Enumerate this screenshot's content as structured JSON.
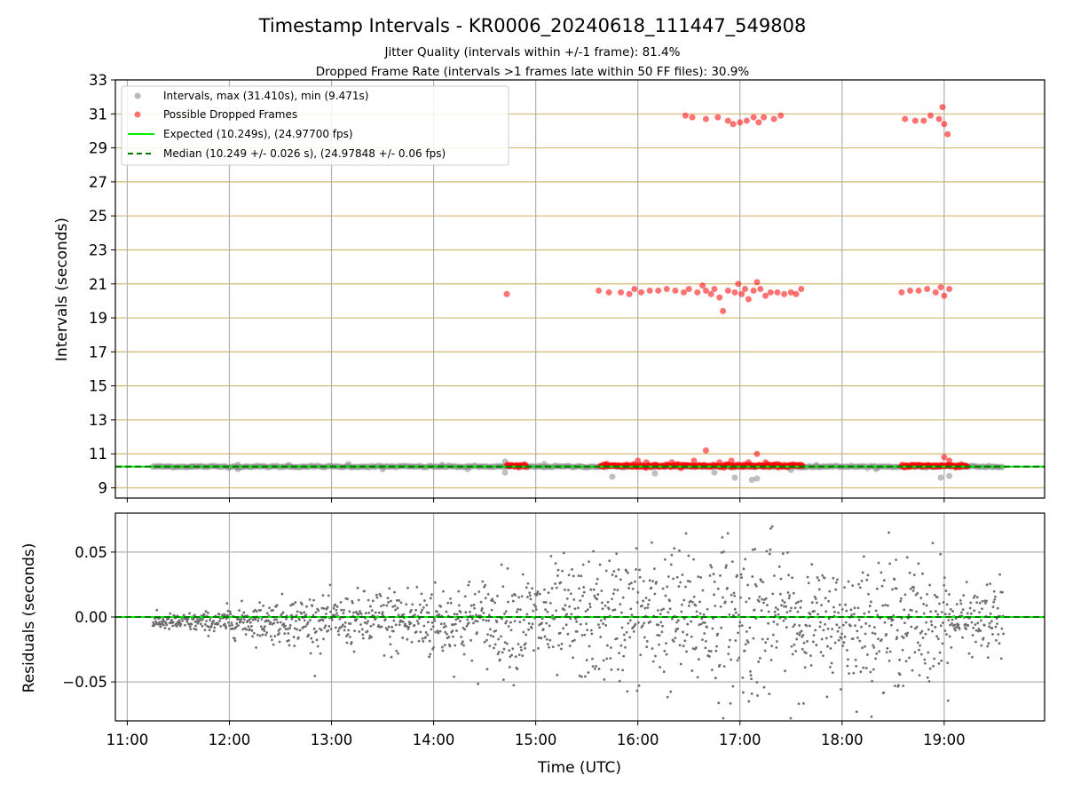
{
  "figure": {
    "title": "Timestamp Intervals - KR0006_20240618_111447_549808",
    "subtitle_1": "Jitter Quality (intervals within +/-1 frame): 81.4%",
    "subtitle_2": "Dropped Frame Rate (intervals >1 frames late within 50 FF files): 30.9%"
  },
  "colors": {
    "interval_points": "#808080",
    "dropped_points": "#ff0000",
    "expected_line": "#00ee00",
    "median_line": "#007700",
    "hgrid_top": "#d4b872",
    "grid": "#b0b0b0"
  },
  "chart_data": [
    {
      "type": "scatter",
      "ylabel": "Intervals (seconds)",
      "ylim": [
        8.4,
        33
      ],
      "yticks": [
        "9",
        "11",
        "13",
        "15",
        "17",
        "19",
        "21",
        "23",
        "25",
        "27",
        "29",
        "31",
        "33"
      ],
      "xlim": [
        "10:53",
        "19:59"
      ],
      "xticks": [
        "11:00",
        "12:00",
        "13:00",
        "14:00",
        "15:00",
        "16:00",
        "17:00",
        "18:00",
        "19:00"
      ],
      "grid": "on",
      "legend_position": "top-left",
      "legend": [
        "Intervals, max (31.410s), min (9.471s)",
        "Possible Dropped Frames",
        "Expected (10.249s), (24.97700 fps)",
        "Median (10.249 +/- 0.026 s), (24.97848 +/- 0.06 fps)"
      ],
      "series": [
        {
          "name": "Intervals, max (31.410s), min (9.471s)",
          "baseline_value": 10.249,
          "time_range": [
            "11:15",
            "19:35"
          ],
          "max": 31.41,
          "min": 9.471,
          "outliers": [
            {
              "x": "11:38",
              "y": 10.25
            },
            {
              "x": "12:05",
              "y": 10.36
            },
            {
              "x": "12:05",
              "y": 10.1
            },
            {
              "x": "12:35",
              "y": 10.35
            },
            {
              "x": "13:10",
              "y": 10.4
            },
            {
              "x": "13:30",
              "y": 10.1
            },
            {
              "x": "14:05",
              "y": 10.35
            },
            {
              "x": "14:20",
              "y": 10.1
            },
            {
              "x": "14:42",
              "y": 10.55
            },
            {
              "x": "14:42",
              "y": 9.9
            },
            {
              "x": "15:05",
              "y": 10.4
            },
            {
              "x": "15:45",
              "y": 9.65
            },
            {
              "x": "16:10",
              "y": 9.85
            },
            {
              "x": "16:45",
              "y": 9.9
            },
            {
              "x": "16:57",
              "y": 9.6
            },
            {
              "x": "17:07",
              "y": 9.47
            },
            {
              "x": "17:10",
              "y": 9.55
            },
            {
              "x": "17:30",
              "y": 10.05
            },
            {
              "x": "17:45",
              "y": 10.35
            },
            {
              "x": "18:20",
              "y": 10.1
            },
            {
              "x": "18:58",
              "y": 9.6
            },
            {
              "x": "19:03",
              "y": 9.7
            },
            {
              "x": "19:10",
              "y": 10.4
            }
          ]
        },
        {
          "name": "Possible Dropped Frames",
          "baseline_band": {
            "y": 10.3,
            "ranges": [
              [
                "14:43",
                "14:55"
              ],
              [
                "15:38",
                "17:37"
              ],
              [
                "18:35",
                "19:14"
              ]
            ]
          },
          "points": [
            {
              "x": "14:43",
              "y": 20.4
            },
            {
              "x": "15:37",
              "y": 20.6
            },
            {
              "x": "15:43",
              "y": 20.5
            },
            {
              "x": "15:50",
              "y": 20.5
            },
            {
              "x": "15:55",
              "y": 20.4
            },
            {
              "x": "15:58",
              "y": 20.7
            },
            {
              "x": "16:02",
              "y": 20.5
            },
            {
              "x": "16:07",
              "y": 20.6
            },
            {
              "x": "16:12",
              "y": 20.6
            },
            {
              "x": "16:17",
              "y": 20.7
            },
            {
              "x": "16:22",
              "y": 20.6
            },
            {
              "x": "16:27",
              "y": 20.5
            },
            {
              "x": "16:30",
              "y": 20.7
            },
            {
              "x": "16:35",
              "y": 20.5
            },
            {
              "x": "16:38",
              "y": 20.9
            },
            {
              "x": "16:40",
              "y": 20.6
            },
            {
              "x": "16:43",
              "y": 20.4
            },
            {
              "x": "16:45",
              "y": 20.7
            },
            {
              "x": "16:48",
              "y": 20.2
            },
            {
              "x": "16:50",
              "y": 19.4
            },
            {
              "x": "16:53",
              "y": 20.6
            },
            {
              "x": "16:57",
              "y": 20.5
            },
            {
              "x": "16:59",
              "y": 21.0
            },
            {
              "x": "17:01",
              "y": 20.4
            },
            {
              "x": "17:03",
              "y": 20.7
            },
            {
              "x": "17:05",
              "y": 20.1
            },
            {
              "x": "17:08",
              "y": 20.6
            },
            {
              "x": "17:10",
              "y": 21.1
            },
            {
              "x": "17:12",
              "y": 20.7
            },
            {
              "x": "17:15",
              "y": 20.3
            },
            {
              "x": "17:18",
              "y": 20.5
            },
            {
              "x": "17:22",
              "y": 20.5
            },
            {
              "x": "17:26",
              "y": 20.4
            },
            {
              "x": "17:30",
              "y": 20.5
            },
            {
              "x": "17:33",
              "y": 20.4
            },
            {
              "x": "17:36",
              "y": 20.7
            },
            {
              "x": "18:35",
              "y": 20.5
            },
            {
              "x": "18:40",
              "y": 20.6
            },
            {
              "x": "18:45",
              "y": 20.6
            },
            {
              "x": "18:50",
              "y": 20.7
            },
            {
              "x": "18:55",
              "y": 20.5
            },
            {
              "x": "18:58",
              "y": 20.8
            },
            {
              "x": "19:00",
              "y": 20.3
            },
            {
              "x": "19:03",
              "y": 20.7
            },
            {
              "x": "16:28",
              "y": 30.9
            },
            {
              "x": "16:32",
              "y": 30.8
            },
            {
              "x": "16:40",
              "y": 30.7
            },
            {
              "x": "16:47",
              "y": 30.8
            },
            {
              "x": "16:53",
              "y": 30.6
            },
            {
              "x": "16:56",
              "y": 30.4
            },
            {
              "x": "17:00",
              "y": 30.5
            },
            {
              "x": "17:04",
              "y": 30.6
            },
            {
              "x": "17:08",
              "y": 30.8
            },
            {
              "x": "17:11",
              "y": 30.5
            },
            {
              "x": "17:14",
              "y": 30.8
            },
            {
              "x": "17:20",
              "y": 30.7
            },
            {
              "x": "17:24",
              "y": 30.9
            },
            {
              "x": "18:37",
              "y": 30.7
            },
            {
              "x": "18:43",
              "y": 30.6
            },
            {
              "x": "18:48",
              "y": 30.6
            },
            {
              "x": "18:52",
              "y": 30.9
            },
            {
              "x": "18:57",
              "y": 30.7
            },
            {
              "x": "18:59",
              "y": 31.4
            },
            {
              "x": "19:00",
              "y": 30.4
            },
            {
              "x": "19:02",
              "y": 29.8
            },
            {
              "x": "14:50",
              "y": 10.2
            },
            {
              "x": "16:00",
              "y": 10.6
            },
            {
              "x": "16:05",
              "y": 10.5
            },
            {
              "x": "16:20",
              "y": 10.5
            },
            {
              "x": "16:33",
              "y": 10.6
            },
            {
              "x": "16:40",
              "y": 11.2
            },
            {
              "x": "16:48",
              "y": 10.5
            },
            {
              "x": "16:55",
              "y": 10.6
            },
            {
              "x": "17:05",
              "y": 10.5
            },
            {
              "x": "17:10",
              "y": 11.0
            },
            {
              "x": "17:15",
              "y": 10.5
            },
            {
              "x": "19:00",
              "y": 10.8
            },
            {
              "x": "19:03",
              "y": 10.6
            }
          ]
        },
        {
          "name": "Expected (10.249s), (24.97700 fps)",
          "y": 10.249
        },
        {
          "name": "Median (10.249 +/- 0.026 s), (24.97848 +/- 0.06 fps)",
          "y": 10.249
        }
      ]
    },
    {
      "type": "scatter",
      "xlabel": "Time (UTC)",
      "ylabel": "Residuals (seconds)",
      "ylim": [
        -0.08,
        0.08
      ],
      "yticks": [
        "−0.05",
        "0.00",
        "0.05"
      ],
      "xlim": [
        "10:53",
        "19:59"
      ],
      "xticks": [
        "11:00",
        "12:00",
        "13:00",
        "14:00",
        "15:00",
        "16:00",
        "17:00",
        "18:00",
        "19:00"
      ],
      "grid": "on",
      "series": [
        {
          "zero_line": 0.0,
          "segments": [
            {
              "from": "11:15",
              "to": "11:58",
              "center": -0.004,
              "spread_start": 0.005,
              "spread_end": 0.008
            },
            {
              "from": "11:58",
              "to": "12:55",
              "center": -0.003,
              "spread_start": 0.01,
              "spread_end": 0.02
            },
            {
              "from": "12:55",
              "to": "14:00",
              "center": -0.003,
              "spread_start": 0.015,
              "spread_end": 0.03
            },
            {
              "from": "14:00",
              "to": "15:40",
              "center": -0.003,
              "spread_start": 0.025,
              "spread_end": 0.045
            },
            {
              "from": "15:40",
              "to": "17:35",
              "center": 0.0,
              "spread_start": 0.045,
              "spread_end": 0.06
            },
            {
              "from": "17:35",
              "to": "18:32",
              "center": -0.005,
              "spread_start": 0.035,
              "spread_end": 0.05
            },
            {
              "from": "18:32",
              "to": "19:03",
              "center": -0.005,
              "spread_start": 0.04,
              "spread_end": 0.05
            },
            {
              "from": "19:03",
              "to": "19:35",
              "center": -0.003,
              "spread_start": 0.015,
              "spread_end": 0.03
            }
          ]
        }
      ]
    }
  ]
}
